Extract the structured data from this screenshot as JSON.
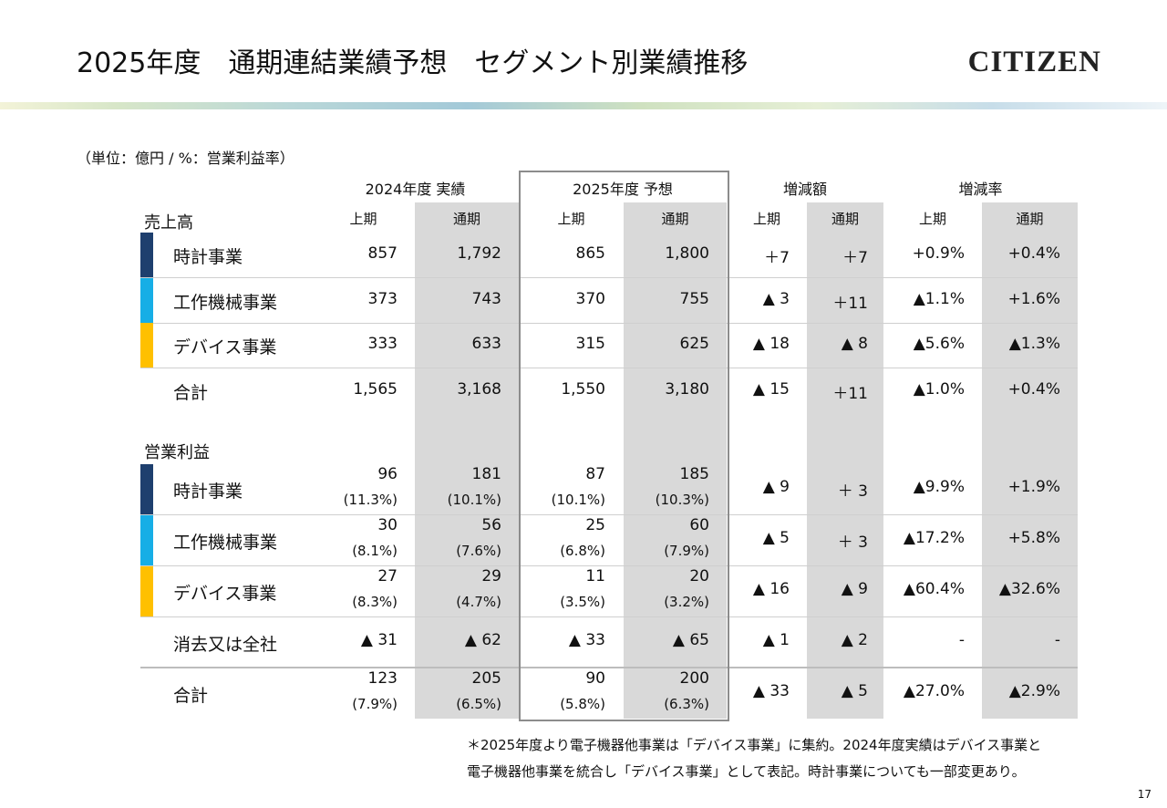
{
  "title": "2025年度　通期連結業績予想　セグメント別業績推移",
  "logo": "CITIZEN",
  "unit": "（単位：億円 / %：営業利益率）",
  "groups": [
    "2024年度 実績",
    "2025年度 予想",
    "増減額",
    "増減率"
  ],
  "subheaders": [
    "上期",
    "通期",
    "上期",
    "通期",
    "上期",
    "通期",
    "上期",
    "通期"
  ],
  "sales_title": "売上高",
  "profit_title": "営業利益",
  "colors": {
    "watch": "#1e3f6e",
    "machine": "#16aee6",
    "device": "#ffc000",
    "shade": "#d9d9d9",
    "frame": "#8c8c8c"
  },
  "sales": [
    {
      "label": "時計事業",
      "values": [
        "857",
        "1,792",
        "865",
        "1,800",
        "＋7",
        "＋7",
        "+0.9%",
        "+0.4%"
      ]
    },
    {
      "label": "工作機械事業",
      "values": [
        "373",
        "743",
        "370",
        "755",
        "▲ 3",
        "＋11",
        "▲1.1%",
        "+1.6%"
      ]
    },
    {
      "label": "デバイス事業",
      "values": [
        "333",
        "633",
        "315",
        "625",
        "▲ 18",
        "▲ 8",
        "▲5.6%",
        "▲1.3%"
      ]
    },
    {
      "label": "合計",
      "values": [
        "1,565",
        "3,168",
        "1,550",
        "3,180",
        "▲ 15",
        "＋11",
        "▲1.0%",
        "+0.4%"
      ]
    }
  ],
  "profit": [
    {
      "label": "時計事業",
      "values": [
        "96",
        "181",
        "87",
        "185"
      ],
      "pcts": [
        "(11.3%)",
        "(10.1%)",
        "(10.1%)",
        "(10.3%)"
      ],
      "diffs": [
        "▲ 9",
        "＋ 3",
        "▲9.9%",
        "+1.9%"
      ]
    },
    {
      "label": "工作機械事業",
      "values": [
        "30",
        "56",
        "25",
        "60"
      ],
      "pcts": [
        "(8.1%)",
        "(7.6%)",
        "(6.8%)",
        "(7.9%)"
      ],
      "diffs": [
        "▲ 5",
        "＋ 3",
        "▲17.2%",
        "+5.8%"
      ]
    },
    {
      "label": "デバイス事業",
      "values": [
        "27",
        "29",
        "11",
        "20"
      ],
      "pcts": [
        "(8.3%)",
        "(4.7%)",
        "(3.5%)",
        "(3.2%)"
      ],
      "diffs": [
        "▲ 16",
        "▲ 9",
        "▲60.4%",
        "▲32.6%"
      ]
    },
    {
      "label": "消去又は全社",
      "values": [
        "▲ 31",
        "▲ 62",
        "▲ 33",
        "▲ 65"
      ],
      "pcts": [
        "",
        "",
        "",
        ""
      ],
      "diffs": [
        "▲ 1",
        "▲ 2",
        "-",
        "-"
      ]
    },
    {
      "label": "合計",
      "values": [
        "123",
        "205",
        "90",
        "200"
      ],
      "pcts": [
        "(7.9%)",
        "(6.5%)",
        "(5.8%)",
        "(6.3%)"
      ],
      "diffs": [
        "▲ 33",
        "▲ 5",
        "▲27.0%",
        "▲2.9%"
      ]
    }
  ],
  "notes": [
    "＊2025年度より電子機器他事業は「デバイス事業」に集約。2024年度実績はデバイス事業と",
    "電子機器他事業を統合し「デバイス事業」として表記。時計事業についても一部変更あり。"
  ],
  "page_number": "17"
}
